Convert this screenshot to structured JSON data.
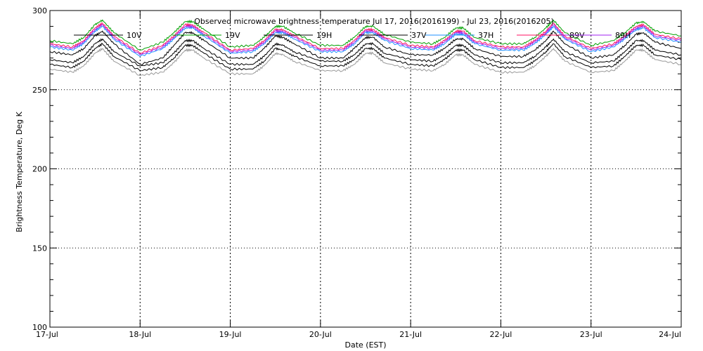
{
  "chart_data": {
    "type": "line",
    "title": "Observed microwave brightness temperature Jul 17, 2016(2016199) - Jul 23, 2016(2016205)",
    "xlabel": "Date (EST)",
    "ylabel": "Brightness Temperature, Deg K",
    "ylim": [
      100,
      300
    ],
    "yticks": [
      100,
      150,
      200,
      250,
      300
    ],
    "xlim": [
      "2016-07-17",
      "2016-07-24"
    ],
    "xticks": [
      "17-Jul",
      "18-Jul",
      "19-Jul",
      "20-Jul",
      "21-Jul",
      "22-Jul",
      "23-Jul",
      "24-Jul"
    ],
    "grid": true,
    "legend_position": "top",
    "x_hours": [
      0,
      6,
      9,
      12,
      14,
      17,
      24,
      30,
      33,
      36,
      38,
      41,
      48,
      54,
      57,
      60,
      62,
      65,
      72,
      78,
      81,
      84,
      86,
      89,
      96,
      102,
      105,
      108,
      110,
      113,
      120,
      126,
      129,
      132,
      134,
      137,
      144,
      150,
      153,
      156,
      158,
      161,
      168
    ],
    "series": [
      {
        "name": "10V",
        "color": "#000000",
        "values": [
          274,
          272,
          276,
          284,
          287,
          279,
          266,
          270,
          278,
          286,
          286,
          281,
          270,
          270,
          276,
          284,
          283,
          279,
          270,
          270,
          276,
          283,
          283,
          277,
          272,
          272,
          276,
          282,
          282,
          276,
          271,
          271,
          275,
          281,
          287,
          279,
          270,
          272,
          278,
          285,
          286,
          280,
          276
        ]
      },
      {
        "name": "19V",
        "color": "#00a000",
        "values": [
          281,
          279,
          283,
          291,
          294,
          286,
          275,
          280,
          286,
          293,
          293,
          288,
          277,
          278,
          283,
          290,
          290,
          286,
          278,
          278,
          283,
          290,
          290,
          285,
          280,
          279,
          283,
          289,
          289,
          283,
          279,
          279,
          283,
          289,
          294,
          286,
          278,
          281,
          286,
          292,
          293,
          287,
          284
        ]
      },
      {
        "name": "19H",
        "color": "#000000",
        "values": [
          266,
          264,
          268,
          276,
          279,
          271,
          262,
          264,
          270,
          278,
          278,
          273,
          263,
          263,
          268,
          276,
          275,
          271,
          265,
          265,
          269,
          276,
          276,
          270,
          266,
          265,
          269,
          275,
          275,
          269,
          264,
          264,
          268,
          274,
          279,
          271,
          264,
          265,
          271,
          278,
          278,
          272,
          269
        ]
      },
      {
        "name": "37V",
        "color": "#000000",
        "values": [
          269,
          267,
          271,
          279,
          282,
          274,
          265,
          267,
          273,
          281,
          281,
          276,
          266,
          266,
          271,
          279,
          278,
          274,
          268,
          268,
          272,
          279,
          279,
          273,
          269,
          268,
          272,
          278,
          278,
          272,
          267,
          267,
          271,
          277,
          282,
          274,
          267,
          268,
          274,
          281,
          281,
          275,
          272
        ]
      },
      {
        "name": "37H",
        "color": "#1e90ff",
        "values": [
          277,
          275,
          279,
          287,
          290,
          282,
          271,
          276,
          282,
          289,
          289,
          284,
          273,
          274,
          279,
          286,
          286,
          282,
          274,
          274,
          279,
          286,
          286,
          281,
          276,
          275,
          279,
          285,
          285,
          279,
          275,
          275,
          279,
          285,
          290,
          282,
          274,
          277,
          282,
          288,
          289,
          283,
          280
        ]
      },
      {
        "name": "89V",
        "color": "#ff1060",
        "values": [
          279,
          277,
          281,
          289,
          292,
          284,
          273,
          278,
          284,
          291,
          291,
          286,
          275,
          276,
          281,
          288,
          288,
          284,
          276,
          276,
          281,
          288,
          288,
          283,
          278,
          277,
          281,
          287,
          287,
          281,
          277,
          277,
          281,
          287,
          292,
          284,
          276,
          279,
          284,
          290,
          291,
          285,
          282
        ]
      },
      {
        "name": "89H",
        "color": "#a020f0",
        "values": [
          278,
          276,
          280,
          288,
          291,
          283,
          272,
          277,
          283,
          290,
          290,
          285,
          274,
          275,
          280,
          287,
          287,
          283,
          275,
          275,
          280,
          287,
          287,
          282,
          277,
          276,
          280,
          286,
          286,
          280,
          276,
          276,
          280,
          286,
          291,
          283,
          275,
          278,
          283,
          289,
          290,
          284,
          281
        ]
      },
      {
        "name": "",
        "color": "#999999",
        "values": [
          263,
          261,
          265,
          273,
          276,
          268,
          259,
          261,
          267,
          275,
          275,
          270,
          260,
          260,
          265,
          273,
          272,
          268,
          262,
          262,
          266,
          273,
          273,
          267,
          263,
          262,
          266,
          272,
          272,
          266,
          261,
          261,
          265,
          271,
          276,
          268,
          261,
          262,
          268,
          275,
          275,
          269,
          266
        ]
      }
    ]
  }
}
